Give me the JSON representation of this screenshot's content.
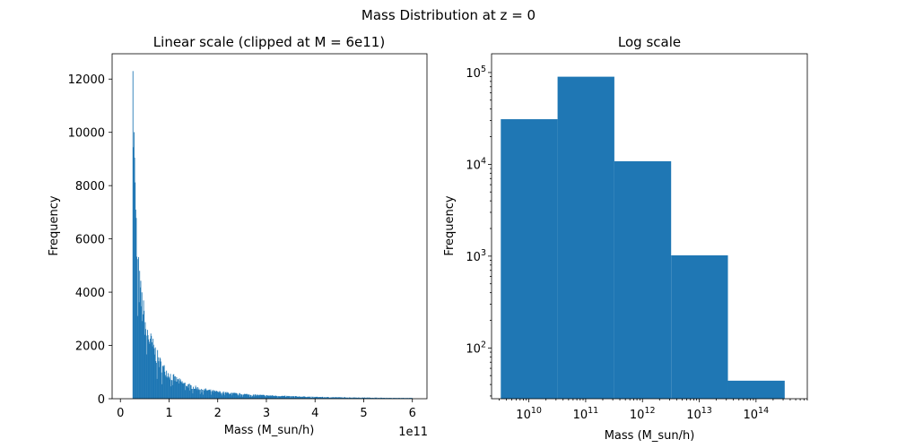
{
  "suptitle": "Mass Distribution at z = 0",
  "chart_data": [
    {
      "type": "bar",
      "title": "Linear scale (clipped at M = 6e11)",
      "xlabel": "Mass (M_sun/h)",
      "ylabel": "Frequency",
      "x_offset_text": "1e11",
      "xlim": [
        -0.17,
        6.3
      ],
      "ylim": [
        0,
        12950
      ],
      "x_ticks": [
        0,
        1,
        2,
        3,
        4,
        5,
        6
      ],
      "x_tick_labels": [
        "0",
        "1",
        "2",
        "3",
        "4",
        "5",
        "6"
      ],
      "y_ticks": [
        0,
        2000,
        4000,
        6000,
        8000,
        10000,
        12000
      ],
      "y_tick_labels": [
        "0",
        "2000",
        "4000",
        "6000",
        "8000",
        "10000",
        "12000"
      ],
      "bin_start": 0.25,
      "bin_end": 6.0,
      "curve_points": [
        [
          0.25,
          12300
        ],
        [
          0.28,
          9050
        ],
        [
          0.32,
          6200
        ],
        [
          0.38,
          4300
        ],
        [
          0.45,
          3400
        ],
        [
          0.55,
          2450
        ],
        [
          0.7,
          1800
        ],
        [
          0.85,
          1200
        ],
        [
          1.0,
          900
        ],
        [
          1.2,
          650
        ],
        [
          1.5,
          430
        ],
        [
          2.0,
          250
        ],
        [
          2.5,
          170
        ],
        [
          3.0,
          120
        ],
        [
          3.5,
          90
        ],
        [
          4.0,
          65
        ],
        [
          4.5,
          50
        ],
        [
          5.0,
          40
        ],
        [
          5.5,
          30
        ],
        [
          6.0,
          25
        ]
      ],
      "grid": false
    },
    {
      "type": "bar",
      "title": "Log scale",
      "xlabel": "Mass (M_sun/h)",
      "ylabel": "Frequency",
      "x_scale": "log",
      "y_scale": "log",
      "xlim": [
        2200000000.0,
        800000000000000.0
      ],
      "ylim": [
        28,
        160000
      ],
      "x_ticks": [
        10000000000.0,
        100000000000.0,
        1000000000000.0,
        10000000000000.0,
        100000000000000.0
      ],
      "x_tick_labels": [
        [
          "10",
          "10"
        ],
        [
          "10",
          "11"
        ],
        [
          "10",
          "12"
        ],
        [
          "10",
          "13"
        ],
        [
          "10",
          "14"
        ]
      ],
      "y_ticks": [
        100,
        1000,
        10000,
        100000
      ],
      "y_tick_labels": [
        [
          "10",
          "2"
        ],
        [
          "10",
          "3"
        ],
        [
          "10",
          "4"
        ],
        [
          "10",
          "5"
        ]
      ],
      "bins": [
        {
          "x0": 3200000000.0,
          "x1": 32000000000.0,
          "count": 31000
        },
        {
          "x0": 32000000000.0,
          "x1": 320000000000.0,
          "count": 90000
        },
        {
          "x0": 320000000000.0,
          "x1": 3200000000000.0,
          "count": 10800
        },
        {
          "x0": 3200000000000.0,
          "x1": 32000000000000.0,
          "count": 1020
        },
        {
          "x0": 32000000000000.0,
          "x1": 320000000000000.0,
          "count": 44
        }
      ],
      "grid": false
    }
  ]
}
